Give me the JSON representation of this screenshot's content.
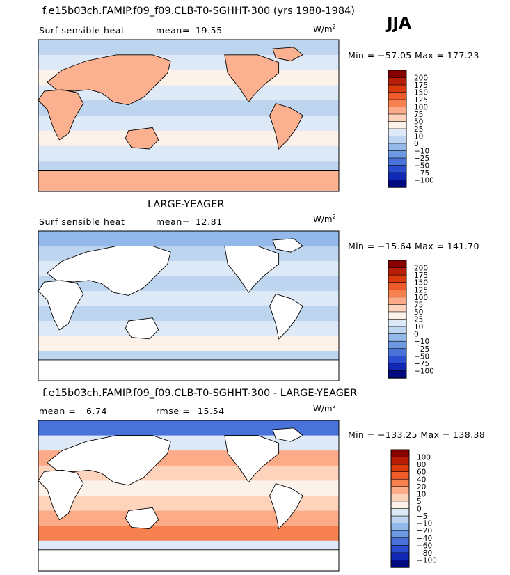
{
  "season": "JJA",
  "panels": [
    {
      "title": "f.e15b03ch.FAMIP.f09_f09.CLB-T0-SGHHT-300 (yrs 1980-1984)",
      "left_label": "Surf sensible heat",
      "stat_label": "mean=",
      "stat_value": "19.55",
      "units_base": "W/m",
      "units_exp": "2",
      "min_max": "Min = −57.05  Max = 177.23"
    },
    {
      "title": "LARGE-YEAGER",
      "left_label": "Surf sensible heat",
      "stat_label": "mean=",
      "stat_value": "12.81",
      "units_base": "W/m",
      "units_exp": "2",
      "min_max": "Min = −15.64  Max = 141.70"
    },
    {
      "title": "f.e15b03ch.FAMIP.f09_f09.CLB-T0-SGHHT-300 - LARGE-YEAGER",
      "left_label": "mean =",
      "left_value": "6.74",
      "stat_label": "rmse =",
      "stat_value": "15.54",
      "units_base": "W/m",
      "units_exp": "2",
      "min_max": "Min = −133.25  Max = 138.38"
    }
  ],
  "chart_data": [
    {
      "type": "heatmap",
      "title": "f.e15b03ch.FAMIP.f09_f09.CLB-T0-SGHHT-300 (yrs 1980-1984)",
      "variable": "Surf sensible heat",
      "units": "W/m2",
      "mean": 19.55,
      "min": -57.05,
      "max": 177.23,
      "colorbar_levels": [
        -100,
        -75,
        -50,
        -25,
        -10,
        0,
        10,
        25,
        50,
        75,
        100,
        125,
        150,
        175,
        200
      ],
      "colorbar_labels": [
        "200",
        "175",
        "150",
        "125",
        "100",
        "75",
        "50",
        "25",
        "10",
        "0",
        "−10",
        "−25",
        "−50",
        "−75",
        "−100"
      ],
      "colorbar_colors": [
        "#860000",
        "#b81d07",
        "#db3a0c",
        "#f05b2b",
        "#f68050",
        "#fbab87",
        "#fdd3bc",
        "#fdf2e9",
        "#dde9f6",
        "#bed5f0",
        "#93b8ea",
        "#6d98e2",
        "#4a73da",
        "#2a4dcf",
        "#1028b3",
        "#000a80"
      ]
    },
    {
      "type": "heatmap",
      "title": "LARGE-YEAGER",
      "variable": "Surf sensible heat",
      "units": "W/m2",
      "mean": 12.81,
      "min": -15.64,
      "max": 141.7,
      "colorbar_levels": [
        -100,
        -75,
        -50,
        -25,
        -10,
        0,
        10,
        25,
        50,
        75,
        100,
        125,
        150,
        175,
        200
      ],
      "colorbar_labels": [
        "200",
        "175",
        "150",
        "125",
        "100",
        "75",
        "50",
        "25",
        "10",
        "0",
        "−10",
        "−25",
        "−50",
        "−75",
        "−100"
      ],
      "colorbar_colors": [
        "#860000",
        "#b81d07",
        "#db3a0c",
        "#f05b2b",
        "#f68050",
        "#fbab87",
        "#fdd3bc",
        "#fdf2e9",
        "#dde9f6",
        "#bed5f0",
        "#93b8ea",
        "#6d98e2",
        "#4a73da",
        "#2a4dcf",
        "#1028b3",
        "#000a80"
      ]
    },
    {
      "type": "heatmap",
      "title": "f.e15b03ch.FAMIP.f09_f09.CLB-T0-SGHHT-300 - LARGE-YEAGER",
      "units": "W/m2",
      "mean": 6.74,
      "rmse": 15.54,
      "min": -133.25,
      "max": 138.38,
      "colorbar_levels": [
        -100,
        -80,
        -60,
        -40,
        -20,
        -10,
        -5,
        0,
        5,
        10,
        20,
        40,
        60,
        80,
        100
      ],
      "colorbar_labels": [
        "100",
        "80",
        "60",
        "40",
        "20",
        "10",
        "5",
        "0",
        "−5",
        "−10",
        "−20",
        "−40",
        "−60",
        "−80",
        "−100"
      ],
      "colorbar_colors": [
        "#860000",
        "#b81d07",
        "#db3a0c",
        "#f05b2b",
        "#f68050",
        "#fbab87",
        "#fdd3bc",
        "#fdf2e9",
        "#dde9f6",
        "#bed5f0",
        "#93b8ea",
        "#6d98e2",
        "#4a73da",
        "#2a4dcf",
        "#1028b3",
        "#000a80"
      ]
    }
  ]
}
